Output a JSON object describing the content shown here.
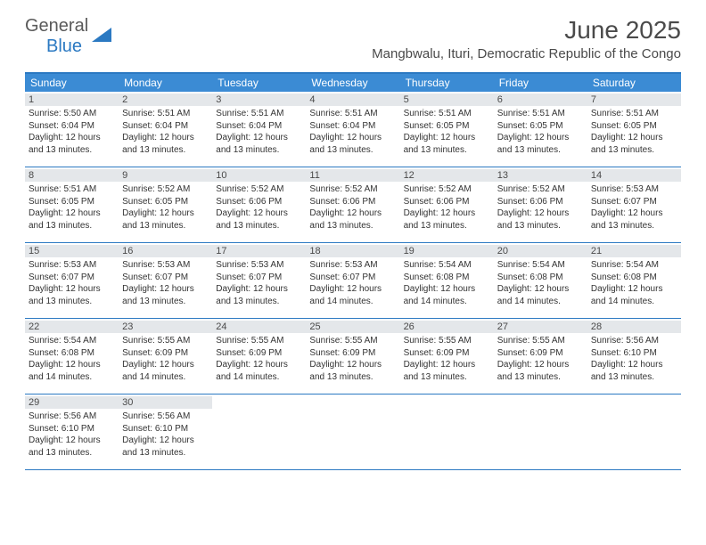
{
  "brand": {
    "part1": "General",
    "part2": "Blue"
  },
  "title": "June 2025",
  "location": "Mangbwalu, Ituri, Democratic Republic of the Congo",
  "colors": {
    "accent": "#2b79c2",
    "header_bg": "#3b8bd4",
    "daynum_bg": "#e4e7ea",
    "text": "#333333",
    "title_text": "#4a4a4a"
  },
  "weekdays": [
    "Sunday",
    "Monday",
    "Tuesday",
    "Wednesday",
    "Thursday",
    "Friday",
    "Saturday"
  ],
  "weeks": [
    [
      {
        "n": "1",
        "sr": "5:50 AM",
        "ss": "6:04 PM",
        "dl": "12 hours and 13 minutes."
      },
      {
        "n": "2",
        "sr": "5:51 AM",
        "ss": "6:04 PM",
        "dl": "12 hours and 13 minutes."
      },
      {
        "n": "3",
        "sr": "5:51 AM",
        "ss": "6:04 PM",
        "dl": "12 hours and 13 minutes."
      },
      {
        "n": "4",
        "sr": "5:51 AM",
        "ss": "6:04 PM",
        "dl": "12 hours and 13 minutes."
      },
      {
        "n": "5",
        "sr": "5:51 AM",
        "ss": "6:05 PM",
        "dl": "12 hours and 13 minutes."
      },
      {
        "n": "6",
        "sr": "5:51 AM",
        "ss": "6:05 PM",
        "dl": "12 hours and 13 minutes."
      },
      {
        "n": "7",
        "sr": "5:51 AM",
        "ss": "6:05 PM",
        "dl": "12 hours and 13 minutes."
      }
    ],
    [
      {
        "n": "8",
        "sr": "5:51 AM",
        "ss": "6:05 PM",
        "dl": "12 hours and 13 minutes."
      },
      {
        "n": "9",
        "sr": "5:52 AM",
        "ss": "6:05 PM",
        "dl": "12 hours and 13 minutes."
      },
      {
        "n": "10",
        "sr": "5:52 AM",
        "ss": "6:06 PM",
        "dl": "12 hours and 13 minutes."
      },
      {
        "n": "11",
        "sr": "5:52 AM",
        "ss": "6:06 PM",
        "dl": "12 hours and 13 minutes."
      },
      {
        "n": "12",
        "sr": "5:52 AM",
        "ss": "6:06 PM",
        "dl": "12 hours and 13 minutes."
      },
      {
        "n": "13",
        "sr": "5:52 AM",
        "ss": "6:06 PM",
        "dl": "12 hours and 13 minutes."
      },
      {
        "n": "14",
        "sr": "5:53 AM",
        "ss": "6:07 PM",
        "dl": "12 hours and 13 minutes."
      }
    ],
    [
      {
        "n": "15",
        "sr": "5:53 AM",
        "ss": "6:07 PM",
        "dl": "12 hours and 13 minutes."
      },
      {
        "n": "16",
        "sr": "5:53 AM",
        "ss": "6:07 PM",
        "dl": "12 hours and 13 minutes."
      },
      {
        "n": "17",
        "sr": "5:53 AM",
        "ss": "6:07 PM",
        "dl": "12 hours and 13 minutes."
      },
      {
        "n": "18",
        "sr": "5:53 AM",
        "ss": "6:07 PM",
        "dl": "12 hours and 14 minutes."
      },
      {
        "n": "19",
        "sr": "5:54 AM",
        "ss": "6:08 PM",
        "dl": "12 hours and 14 minutes."
      },
      {
        "n": "20",
        "sr": "5:54 AM",
        "ss": "6:08 PM",
        "dl": "12 hours and 14 minutes."
      },
      {
        "n": "21",
        "sr": "5:54 AM",
        "ss": "6:08 PM",
        "dl": "12 hours and 14 minutes."
      }
    ],
    [
      {
        "n": "22",
        "sr": "5:54 AM",
        "ss": "6:08 PM",
        "dl": "12 hours and 14 minutes."
      },
      {
        "n": "23",
        "sr": "5:55 AM",
        "ss": "6:09 PM",
        "dl": "12 hours and 14 minutes."
      },
      {
        "n": "24",
        "sr": "5:55 AM",
        "ss": "6:09 PM",
        "dl": "12 hours and 14 minutes."
      },
      {
        "n": "25",
        "sr": "5:55 AM",
        "ss": "6:09 PM",
        "dl": "12 hours and 13 minutes."
      },
      {
        "n": "26",
        "sr": "5:55 AM",
        "ss": "6:09 PM",
        "dl": "12 hours and 13 minutes."
      },
      {
        "n": "27",
        "sr": "5:55 AM",
        "ss": "6:09 PM",
        "dl": "12 hours and 13 minutes."
      },
      {
        "n": "28",
        "sr": "5:56 AM",
        "ss": "6:10 PM",
        "dl": "12 hours and 13 minutes."
      }
    ],
    [
      {
        "n": "29",
        "sr": "5:56 AM",
        "ss": "6:10 PM",
        "dl": "12 hours and 13 minutes."
      },
      {
        "n": "30",
        "sr": "5:56 AM",
        "ss": "6:10 PM",
        "dl": "12 hours and 13 minutes."
      },
      null,
      null,
      null,
      null,
      null
    ]
  ],
  "labels": {
    "sunrise": "Sunrise:",
    "sunset": "Sunset:",
    "daylight": "Daylight:"
  }
}
